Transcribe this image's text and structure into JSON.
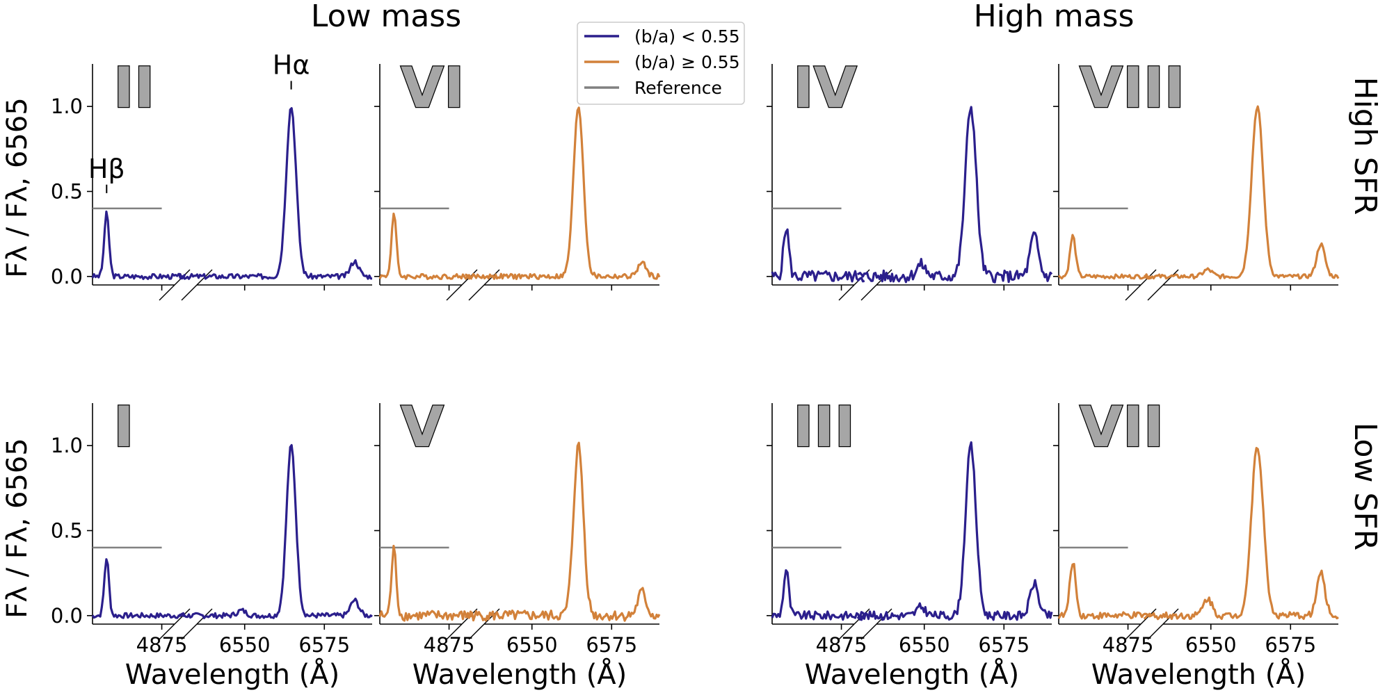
{
  "figure": {
    "column_titles": [
      "Low mass",
      "High mass"
    ],
    "row_titles": [
      "High SFR",
      "Low SFR"
    ],
    "y_label": "Fλ / Fλ, 6565",
    "x_label": "Wavelength (Å)",
    "line_labels": {
      "hbeta": "Hβ",
      "halpha": "Hα"
    }
  },
  "legend": {
    "placement": "top-center",
    "entries": [
      {
        "label": "(b/a) < 0.55",
        "color": "#2b1f8c"
      },
      {
        "label": "(b/a) ≥ 0.55",
        "color": "#d2813a"
      },
      {
        "label": "Reference",
        "color": "#808080"
      }
    ]
  },
  "chart_data": {
    "type": "line",
    "layout": "2 rows x 4 columns of broken-axis spectra",
    "x_left_range": [
      4848,
      4880
    ],
    "x_right_range": [
      6535,
      6590
    ],
    "x_tick_labels": [
      "4875",
      "6550",
      "6575"
    ],
    "x_ticks": [
      4875,
      6550,
      6575
    ],
    "ylim": [
      -0.05,
      1.25
    ],
    "y_ticks": [
      0.0,
      0.5,
      1.0
    ],
    "y_tick_labels": [
      "0.0",
      "0.5",
      "1.0"
    ],
    "reference_level": 0.4,
    "reference_x": [
      4848,
      4875
    ],
    "grid": false,
    "panels": [
      {
        "roman": "II",
        "row": 0,
        "col": 0,
        "series": "(b/a) < 0.55",
        "color": "#2b1f8c",
        "hbeta_peak": 0.37,
        "halpha_peak": 1.0,
        "right_bump": 0.09,
        "left_bump": 0.0,
        "noise": 0.015,
        "width": 1.0
      },
      {
        "roman": "VI",
        "row": 0,
        "col": 1,
        "series": "(b/a) ≥ 0.55",
        "color": "#d2813a",
        "hbeta_peak": 0.37,
        "halpha_peak": 1.0,
        "right_bump": 0.08,
        "left_bump": 0.0,
        "noise": 0.015,
        "width": 1.0
      },
      {
        "roman": "IV",
        "row": 0,
        "col": 2,
        "series": "(b/a) < 0.55",
        "color": "#2b1f8c",
        "hbeta_peak": 0.29,
        "halpha_peak": 1.0,
        "right_bump": 0.24,
        "left_bump": 0.07,
        "noise": 0.035,
        "width": 1.1
      },
      {
        "roman": "VIII",
        "row": 0,
        "col": 3,
        "series": "(b/a) ≥ 0.55",
        "color": "#d2813a",
        "hbeta_peak": 0.24,
        "halpha_peak": 1.0,
        "right_bump": 0.19,
        "left_bump": 0.04,
        "noise": 0.012,
        "width": 1.15
      },
      {
        "roman": "I",
        "row": 1,
        "col": 0,
        "series": "(b/a) < 0.55",
        "color": "#2b1f8c",
        "hbeta_peak": 0.34,
        "halpha_peak": 1.0,
        "right_bump": 0.09,
        "left_bump": 0.03,
        "noise": 0.015,
        "width": 0.95
      },
      {
        "roman": "V",
        "row": 1,
        "col": 1,
        "series": "(b/a) ≥ 0.55",
        "color": "#d2813a",
        "hbeta_peak": 0.39,
        "halpha_peak": 1.0,
        "right_bump": 0.14,
        "left_bump": 0.0,
        "noise": 0.03,
        "width": 1.0
      },
      {
        "roman": "III",
        "row": 1,
        "col": 2,
        "series": "(b/a) < 0.55",
        "color": "#2b1f8c",
        "hbeta_peak": 0.27,
        "halpha_peak": 1.0,
        "right_bump": 0.19,
        "left_bump": 0.05,
        "noise": 0.025,
        "width": 1.05
      },
      {
        "roman": "VII",
        "row": 1,
        "col": 3,
        "series": "(b/a) ≥ 0.55",
        "color": "#d2813a",
        "hbeta_peak": 0.32,
        "halpha_peak": 1.0,
        "right_bump": 0.25,
        "left_bump": 0.1,
        "noise": 0.02,
        "width": 1.2
      }
    ]
  }
}
